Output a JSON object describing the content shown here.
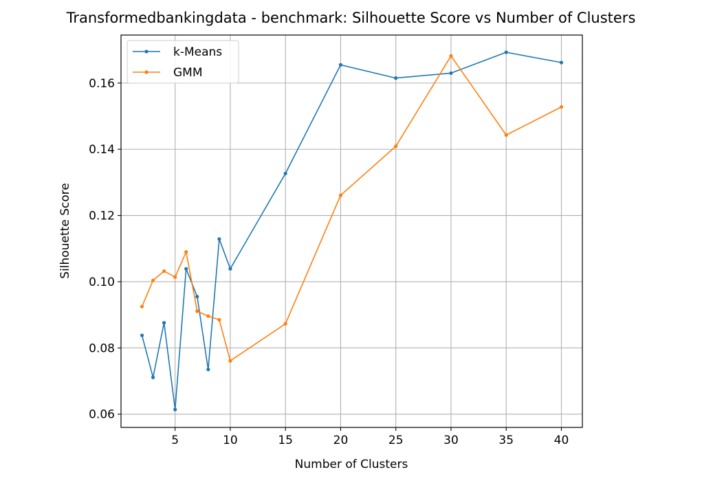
{
  "chart_data": {
    "type": "line",
    "title": "Transformedbankingdata - benchmark: Silhouette Score vs Number of Clusters",
    "xlabel": "Number of Clusters",
    "ylabel": "Silhouette Score",
    "xlim": [
      0.1,
      41.9
    ],
    "ylim": [
      0.056,
      0.1745
    ],
    "xticks": [
      5,
      10,
      15,
      20,
      25,
      30,
      35,
      40
    ],
    "yticks": [
      0.06,
      0.08,
      0.1,
      0.12,
      0.14,
      0.16
    ],
    "ytick_labels": [
      "0.06",
      "0.08",
      "0.10",
      "0.12",
      "0.14",
      "0.16"
    ],
    "grid": true,
    "legend_position": "upper-left",
    "x": [
      2,
      3,
      4,
      5,
      6,
      7,
      8,
      9,
      10,
      15,
      20,
      25,
      30,
      35,
      40
    ],
    "series": [
      {
        "name": "k-Means",
        "color": "#1f77b4",
        "values": [
          0.0838,
          0.0711,
          0.0876,
          0.0614,
          0.1039,
          0.0955,
          0.0735,
          0.1129,
          0.1039,
          0.1327,
          0.1655,
          0.1615,
          0.163,
          0.1693,
          0.1662
        ]
      },
      {
        "name": "GMM",
        "color": "#ff7f0e",
        "values": [
          0.0925,
          0.1004,
          0.1032,
          0.1014,
          0.109,
          0.0911,
          0.0896,
          0.0885,
          0.0761,
          0.0873,
          0.1261,
          0.1409,
          0.1682,
          0.1443,
          0.1528
        ]
      }
    ]
  }
}
